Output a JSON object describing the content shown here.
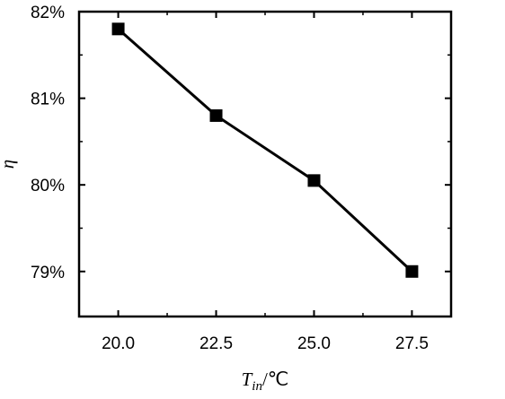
{
  "chart_data": {
    "type": "line",
    "title": "",
    "xlabel": {
      "symbol": "T",
      "subscript": "in",
      "unit": "/℃"
    },
    "ylabel": "η",
    "x": [
      20.0,
      22.5,
      25.0,
      27.5
    ],
    "series": [
      {
        "values": [
          0.818,
          0.808,
          0.8005,
          0.79
        ]
      }
    ],
    "xlim": [
      19.0,
      28.5
    ],
    "ylim": [
      0.7848,
      0.82
    ],
    "xticks": [
      20.0,
      22.5,
      25.0,
      27.5
    ],
    "xtick_labels": [
      "20.0",
      "22.5",
      "25.0",
      "27.5"
    ],
    "yticks": [
      0.79,
      0.8,
      0.81,
      0.82
    ],
    "ytick_labels": [
      "79%",
      "80%",
      "81%",
      "82%"
    ],
    "marker": "square",
    "grid": false,
    "legend": "none",
    "colors": {
      "line": "#000000",
      "marker": "#000000",
      "axes": "#000000",
      "background": "#ffffff"
    }
  }
}
